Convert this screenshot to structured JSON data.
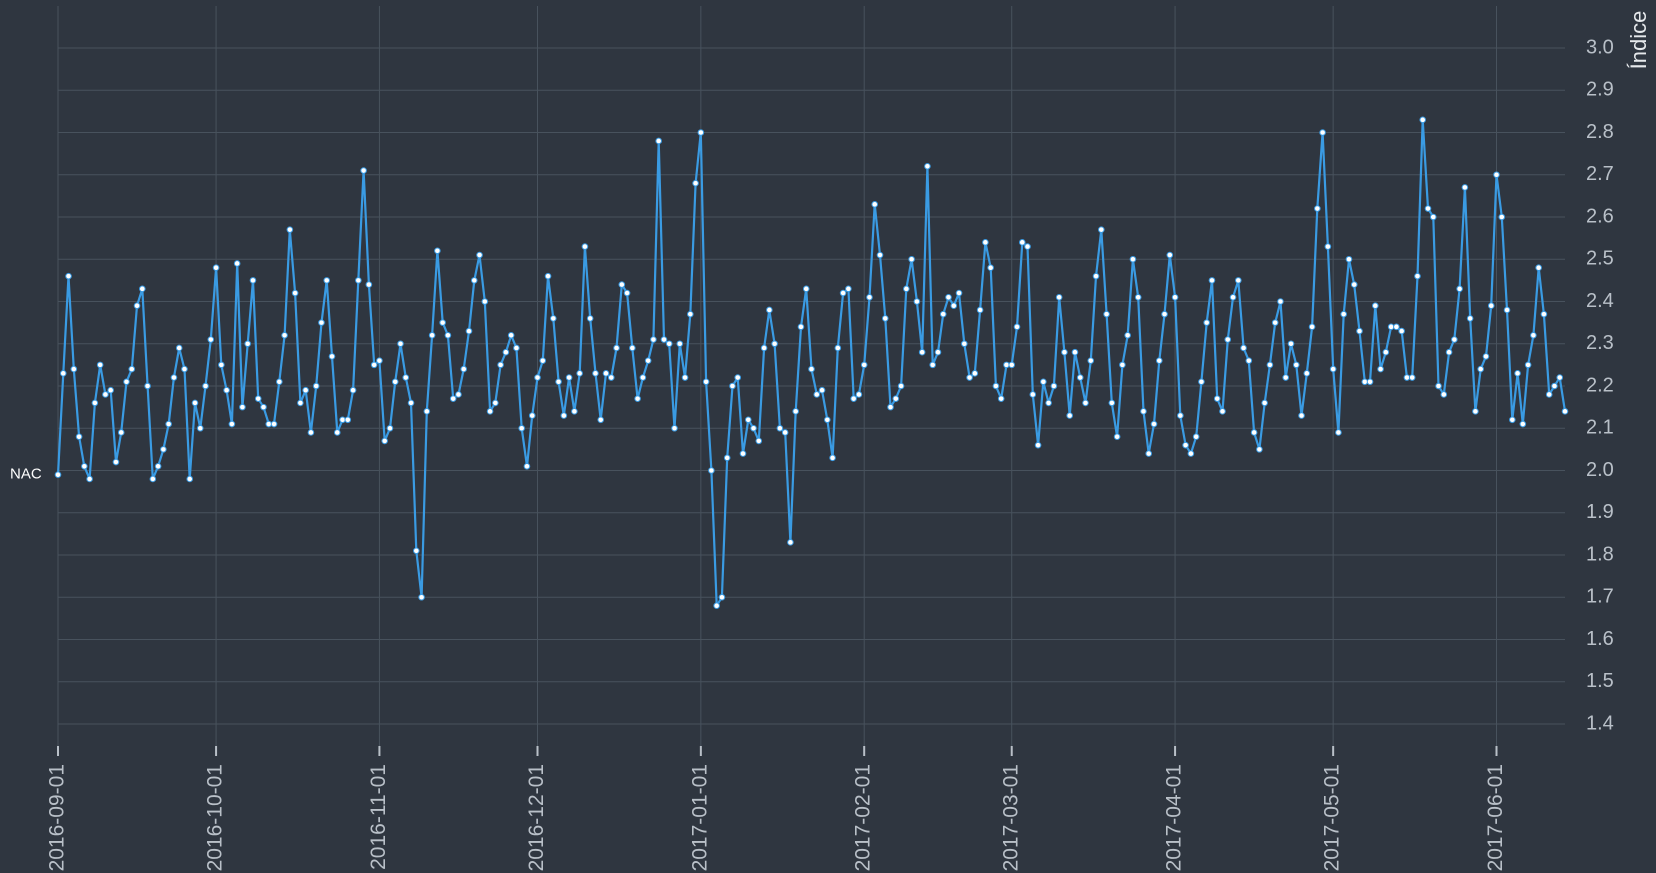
{
  "chart_data": {
    "type": "line",
    "y_label": "Índice",
    "xlim": [
      "2016-09-01",
      "2017-06-14"
    ],
    "ylim": [
      1.4,
      3.0
    ],
    "xticks": [
      "2016-09-01",
      "2016-10-01",
      "2016-11-01",
      "2016-12-01",
      "2017-01-01",
      "2017-02-01",
      "2017-03-01",
      "2017-04-01",
      "2017-05-01",
      "2017-06-01"
    ],
    "yticks": [
      1.4,
      1.5,
      1.6,
      1.7,
      1.8,
      1.9,
      {
        "value": 2,
        "label": "2.0"
      },
      2.1,
      2.2,
      2.3,
      2.4,
      2.5,
      2.6,
      2.7,
      2.8,
      2.9,
      {
        "value": 3,
        "label": "3.0"
      }
    ],
    "grid": true,
    "x": [
      "2016-09-01",
      "2016-09-02",
      "2016-09-03",
      "2016-09-04",
      "2016-09-05",
      "2016-09-06",
      "2016-09-07",
      "2016-09-08",
      "2016-09-09",
      "2016-09-10",
      "2016-09-11",
      "2016-09-12",
      "2016-09-13",
      "2016-09-14",
      "2016-09-15",
      "2016-09-16",
      "2016-09-17",
      "2016-09-18",
      "2016-09-19",
      "2016-09-20",
      "2016-09-21",
      "2016-09-22",
      "2016-09-23",
      "2016-09-24",
      "2016-09-25",
      "2016-09-26",
      "2016-09-27",
      "2016-09-28",
      "2016-09-29",
      "2016-09-30",
      "2016-10-01",
      "2016-10-02",
      "2016-10-03",
      "2016-10-04",
      "2016-10-05",
      "2016-10-06",
      "2016-10-07",
      "2016-10-08",
      "2016-10-09",
      "2016-10-10",
      "2016-10-11",
      "2016-10-12",
      "2016-10-13",
      "2016-10-14",
      "2016-10-15",
      "2016-10-16",
      "2016-10-17",
      "2016-10-18",
      "2016-10-19",
      "2016-10-20",
      "2016-10-21",
      "2016-10-22",
      "2016-10-23",
      "2016-10-24",
      "2016-10-25",
      "2016-10-26",
      "2016-10-27",
      "2016-10-28",
      "2016-10-29",
      "2016-10-30",
      "2016-10-31",
      "2016-11-01",
      "2016-11-02",
      "2016-11-03",
      "2016-11-04",
      "2016-11-05",
      "2016-11-06",
      "2016-11-07",
      "2016-11-08",
      "2016-11-09",
      "2016-11-10",
      "2016-11-11",
      "2016-11-12",
      "2016-11-13",
      "2016-11-14",
      "2016-11-15",
      "2016-11-16",
      "2016-11-17",
      "2016-11-18",
      "2016-11-19",
      "2016-11-20",
      "2016-11-21",
      "2016-11-22",
      "2016-11-23",
      "2016-11-24",
      "2016-11-25",
      "2016-11-26",
      "2016-11-27",
      "2016-11-28",
      "2016-11-29",
      "2016-11-30",
      "2016-12-01",
      "2016-12-02",
      "2016-12-03",
      "2016-12-04",
      "2016-12-05",
      "2016-12-06",
      "2016-12-07",
      "2016-12-08",
      "2016-12-09",
      "2016-12-10",
      "2016-12-11",
      "2016-12-12",
      "2016-12-13",
      "2016-12-14",
      "2016-12-15",
      "2016-12-16",
      "2016-12-17",
      "2016-12-18",
      "2016-12-19",
      "2016-12-20",
      "2016-12-21",
      "2016-12-22",
      "2016-12-23",
      "2016-12-24",
      "2016-12-25",
      "2016-12-26",
      "2016-12-27",
      "2016-12-28",
      "2016-12-29",
      "2016-12-30",
      "2016-12-31",
      "2017-01-01",
      "2017-01-02",
      "2017-01-03",
      "2017-01-04",
      "2017-01-05",
      "2017-01-06",
      "2017-01-07",
      "2017-01-08",
      "2017-01-09",
      "2017-01-10",
      "2017-01-11",
      "2017-01-12",
      "2017-01-13",
      "2017-01-14",
      "2017-01-15",
      "2017-01-16",
      "2017-01-17",
      "2017-01-18",
      "2017-01-19",
      "2017-01-20",
      "2017-01-21",
      "2017-01-22",
      "2017-01-23",
      "2017-01-24",
      "2017-01-25",
      "2017-01-26",
      "2017-01-27",
      "2017-01-28",
      "2017-01-29",
      "2017-01-30",
      "2017-01-31",
      "2017-02-01",
      "2017-02-02",
      "2017-02-03",
      "2017-02-04",
      "2017-02-05",
      "2017-02-06",
      "2017-02-07",
      "2017-02-08",
      "2017-02-09",
      "2017-02-10",
      "2017-02-11",
      "2017-02-12",
      "2017-02-13",
      "2017-02-14",
      "2017-02-15",
      "2017-02-16",
      "2017-02-17",
      "2017-02-18",
      "2017-02-19",
      "2017-02-20",
      "2017-02-21",
      "2017-02-22",
      "2017-02-23",
      "2017-02-24",
      "2017-02-25",
      "2017-02-26",
      "2017-02-27",
      "2017-02-28",
      "2017-03-01",
      "2017-03-02",
      "2017-03-03",
      "2017-03-04",
      "2017-03-05",
      "2017-03-06",
      "2017-03-07",
      "2017-03-08",
      "2017-03-09",
      "2017-03-10",
      "2017-03-11",
      "2017-03-12",
      "2017-03-13",
      "2017-03-14",
      "2017-03-15",
      "2017-03-16",
      "2017-03-17",
      "2017-03-18",
      "2017-03-19",
      "2017-03-20",
      "2017-03-21",
      "2017-03-22",
      "2017-03-23",
      "2017-03-24",
      "2017-03-25",
      "2017-03-26",
      "2017-03-27",
      "2017-03-28",
      "2017-03-29",
      "2017-03-30",
      "2017-03-31",
      "2017-04-01",
      "2017-04-02",
      "2017-04-03",
      "2017-04-04",
      "2017-04-05",
      "2017-04-06",
      "2017-04-07",
      "2017-04-08",
      "2017-04-09",
      "2017-04-10",
      "2017-04-11",
      "2017-04-12",
      "2017-04-13",
      "2017-04-14",
      "2017-04-15",
      "2017-04-16",
      "2017-04-17",
      "2017-04-18",
      "2017-04-19",
      "2017-04-20",
      "2017-04-21",
      "2017-04-22",
      "2017-04-23",
      "2017-04-24",
      "2017-04-25",
      "2017-04-26",
      "2017-04-27",
      "2017-04-28",
      "2017-04-29",
      "2017-04-30",
      "2017-05-01",
      "2017-05-02",
      "2017-05-03",
      "2017-05-04",
      "2017-05-05",
      "2017-05-06",
      "2017-05-07",
      "2017-05-08",
      "2017-05-09",
      "2017-05-10",
      "2017-05-11",
      "2017-05-12",
      "2017-05-13",
      "2017-05-14",
      "2017-05-15",
      "2017-05-16",
      "2017-05-17",
      "2017-05-18",
      "2017-05-19",
      "2017-05-20",
      "2017-05-21",
      "2017-05-22",
      "2017-05-23",
      "2017-05-24",
      "2017-05-25",
      "2017-05-26",
      "2017-05-27",
      "2017-05-28",
      "2017-05-29",
      "2017-05-30",
      "2017-05-31",
      "2017-06-01",
      "2017-06-02",
      "2017-06-03",
      "2017-06-04",
      "2017-06-05",
      "2017-06-06",
      "2017-06-07",
      "2017-06-08",
      "2017-06-09",
      "2017-06-10",
      "2017-06-11",
      "2017-06-12",
      "2017-06-13",
      "2017-06-14"
    ],
    "series": [
      {
        "name": "NAC",
        "color": "#3a9be3",
        "values": [
          1.99,
          2.23,
          2.46,
          2.24,
          2.08,
          2.01,
          1.98,
          2.16,
          2.25,
          2.18,
          2.19,
          2.02,
          2.09,
          2.21,
          2.24,
          2.39,
          2.43,
          2.2,
          1.98,
          2.01,
          2.05,
          2.11,
          2.22,
          2.29,
          2.24,
          1.98,
          2.16,
          2.1,
          2.2,
          2.31,
          2.48,
          2.25,
          2.19,
          2.11,
          2.49,
          2.15,
          2.3,
          2.45,
          2.17,
          2.15,
          2.11,
          2.11,
          2.21,
          2.32,
          2.57,
          2.42,
          2.16,
          2.19,
          2.09,
          2.2,
          2.35,
          2.45,
          2.27,
          2.09,
          2.12,
          2.12,
          2.19,
          2.45,
          2.71,
          2.44,
          2.25,
          2.26,
          2.07,
          2.1,
          2.21,
          2.3,
          2.22,
          2.16,
          1.81,
          1.7,
          2.14,
          2.32,
          2.52,
          2.35,
          2.32,
          2.17,
          2.18,
          2.24,
          2.33,
          2.45,
          2.51,
          2.4,
          2.14,
          2.16,
          2.25,
          2.28,
          2.32,
          2.29,
          2.1,
          2.01,
          2.13,
          2.22,
          2.26,
          2.46,
          2.36,
          2.21,
          2.13,
          2.22,
          2.14,
          2.23,
          2.53,
          2.36,
          2.23,
          2.12,
          2.23,
          2.22,
          2.29,
          2.44,
          2.42,
          2.29,
          2.17,
          2.22,
          2.26,
          2.31,
          2.78,
          2.31,
          2.3,
          2.1,
          2.3,
          2.22,
          2.37,
          2.68,
          2.8,
          2.21,
          2.0,
          1.68,
          1.7,
          2.03,
          2.2,
          2.22,
          2.04,
          2.12,
          2.1,
          2.07,
          2.29,
          2.38,
          2.3,
          2.1,
          2.09,
          1.83,
          2.14,
          2.34,
          2.43,
          2.24,
          2.18,
          2.19,
          2.12,
          2.03,
          2.29,
          2.42,
          2.43,
          2.17,
          2.18,
          2.25,
          2.41,
          2.63,
          2.51,
          2.36,
          2.15,
          2.17,
          2.2,
          2.43,
          2.5,
          2.4,
          2.28,
          2.72,
          2.25,
          2.28,
          2.37,
          2.41,
          2.39,
          2.42,
          2.3,
          2.22,
          2.23,
          2.38,
          2.54,
          2.48,
          2.2,
          2.17,
          2.25,
          2.25,
          2.34,
          2.54,
          2.53,
          2.18,
          2.06,
          2.21,
          2.16,
          2.2,
          2.41,
          2.28,
          2.13,
          2.28,
          2.22,
          2.16,
          2.26,
          2.46,
          2.57,
          2.37,
          2.16,
          2.08,
          2.25,
          2.32,
          2.5,
          2.41,
          2.14,
          2.04,
          2.11,
          2.26,
          2.37,
          2.51,
          2.41,
          2.13,
          2.06,
          2.04,
          2.08,
          2.21,
          2.35,
          2.45,
          2.17,
          2.14,
          2.31,
          2.41,
          2.45,
          2.29,
          2.26,
          2.09,
          2.05,
          2.16,
          2.25,
          2.35,
          2.4,
          2.22,
          2.3,
          2.25,
          2.13,
          2.23,
          2.34,
          2.62,
          2.8,
          2.53,
          2.24,
          2.09,
          2.37,
          2.5,
          2.44,
          2.33,
          2.21,
          2.21,
          2.39,
          2.24,
          2.28,
          2.34,
          2.34,
          2.33,
          2.22,
          2.22,
          2.46,
          2.83,
          2.62,
          2.6,
          2.2,
          2.18,
          2.28,
          2.31,
          2.43,
          2.67,
          2.36,
          2.14,
          2.24,
          2.27,
          2.39,
          2.7,
          2.6,
          2.38,
          2.12,
          2.23,
          2.11,
          2.25,
          2.32,
          2.48,
          2.37,
          2.18,
          2.2,
          2.22,
          2.14
        ]
      }
    ]
  }
}
